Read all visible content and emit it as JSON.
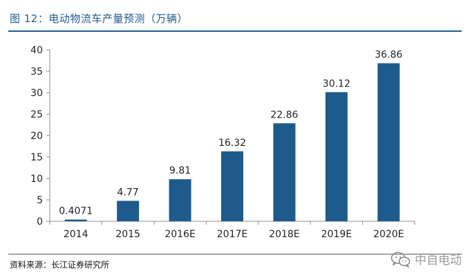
{
  "figure": {
    "title": "图 12：电动物流车产量预测（万辆）",
    "source": "资料来源：长江证券研究所",
    "watermark": "中自电动"
  },
  "colors": {
    "bar": "#1f5a8c",
    "title": "#1f5a8c",
    "axis": "#8c8c8c",
    "text": "#222222"
  },
  "icons": {
    "watermark_icon": "wechat-icon"
  },
  "chart_data": {
    "type": "bar",
    "title": "图 12：电动物流车产量预测（万辆）",
    "xlabel": "",
    "ylabel": "",
    "categories": [
      "2014",
      "2015",
      "2016E",
      "2017E",
      "2018E",
      "2019E",
      "2020E"
    ],
    "values": [
      0.4071,
      4.77,
      9.81,
      16.32,
      22.86,
      30.12,
      36.86
    ],
    "value_labels": [
      "0.4071",
      "4.77",
      "9.81",
      "16.32",
      "22.86",
      "30.12",
      "36.86"
    ],
    "ylim": [
      0,
      40
    ],
    "yticks": [
      0,
      5,
      10,
      15,
      20,
      25,
      30,
      35,
      40
    ],
    "grid": false,
    "legend": "none"
  }
}
